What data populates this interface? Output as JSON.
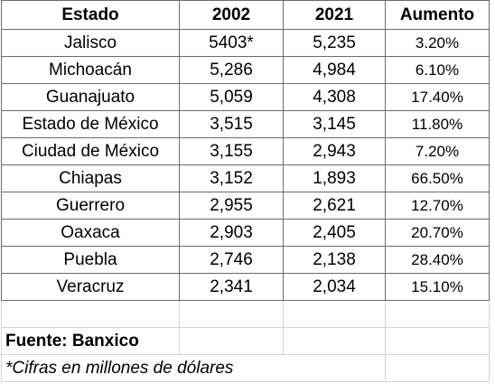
{
  "table": {
    "headers": [
      "Estado",
      "2002",
      "2021",
      "Aumento"
    ],
    "rows": [
      [
        "Jalisco",
        "5403*",
        "5,235",
        "3.20%"
      ],
      [
        "Michoacán",
        "5,286",
        "4,984",
        "6.10%"
      ],
      [
        "Guanajuato",
        "5,059",
        "4,308",
        "17.40%"
      ],
      [
        "Estado de México",
        "3,515",
        "3,145",
        "11.80%"
      ],
      [
        "Ciudad de México",
        "3,155",
        "2,943",
        "7.20%"
      ],
      [
        "Chiapas",
        "3,152",
        "1,893",
        "66.50%"
      ],
      [
        "Guerrero",
        "2,955",
        "2,621",
        "12.70%"
      ],
      [
        "Oaxaca",
        "2,903",
        "2,405",
        "20.70%"
      ],
      [
        "Puebla",
        "2,746",
        "2,138",
        "28.40%"
      ],
      [
        "Veracruz",
        "2,341",
        "2,034",
        "15.10%"
      ]
    ]
  },
  "footer": {
    "source": "Fuente: Banxico",
    "note": "*Cifras en millones de dólares"
  }
}
